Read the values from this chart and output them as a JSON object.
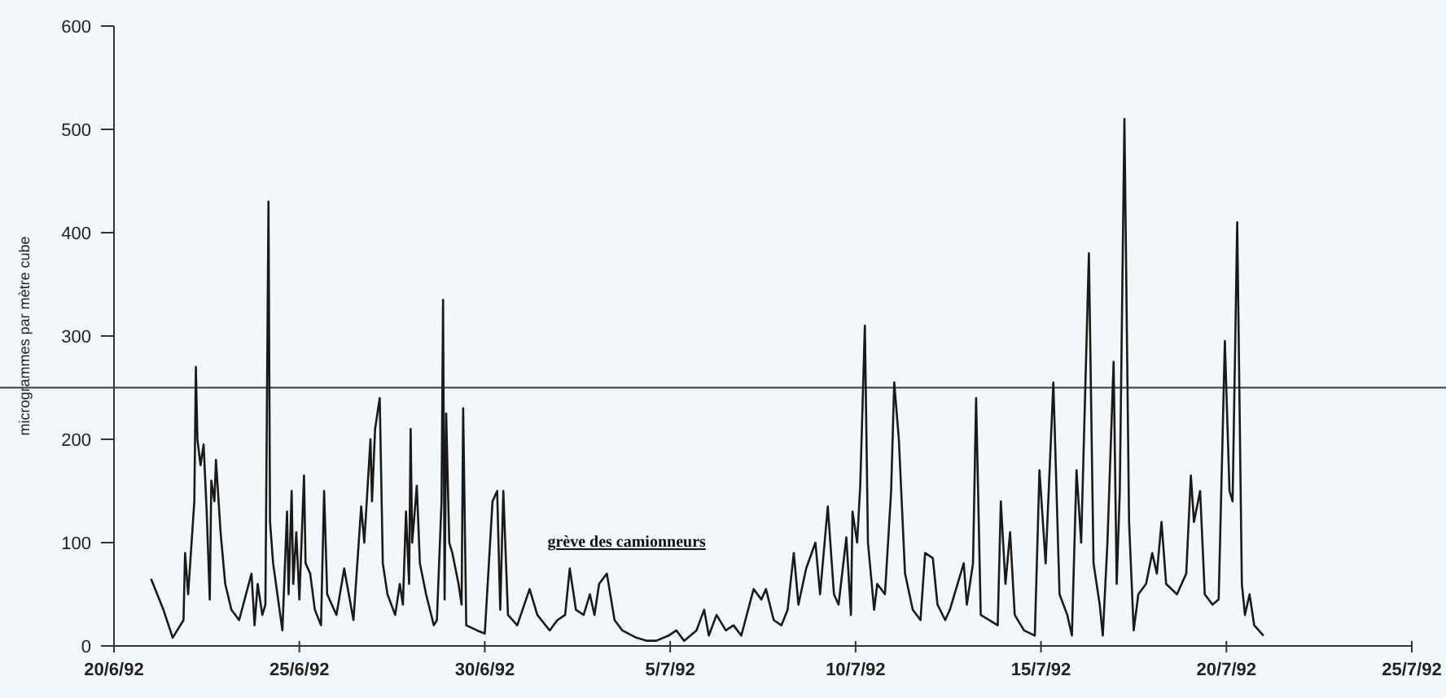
{
  "chart_data": {
    "type": "line",
    "ylabel": "microgrammes par mètre cube",
    "xlim": [
      "1992-06-20",
      "1992-07-25"
    ],
    "xticks": [
      {
        "value": "1992-06-20",
        "label": "20/6/92"
      },
      {
        "value": "1992-06-25",
        "label": "25/6/92"
      },
      {
        "value": "1992-06-30",
        "label": "30/6/92"
      },
      {
        "value": "1992-07-05",
        "label": "5/7/92"
      },
      {
        "value": "1992-07-10",
        "label": "10/7/92"
      },
      {
        "value": "1992-07-15",
        "label": "15/7/92"
      },
      {
        "value": "1992-07-20",
        "label": "20/7/92"
      },
      {
        "value": "1992-07-25",
        "label": "25/7/92"
      }
    ],
    "ylim": [
      0,
      600
    ],
    "yticks": [
      0,
      100,
      200,
      300,
      400,
      500,
      600
    ],
    "grid": false,
    "marker": "none",
    "line_style": "solid",
    "ref_lines": [
      {
        "axis": "y",
        "value": 250,
        "color": "#3a3a3a"
      }
    ],
    "annotations": [
      "grève des camionneurs"
    ],
    "series": [
      {
        "color": "#1a1a1a",
        "x": [
          "1992-06-21T00:00",
          "1992-06-21T08:00",
          "1992-06-21T14:00",
          "1992-06-21T21:00",
          "1992-06-21T22:00",
          "1992-06-22T00:00",
          "1992-06-22T04:00",
          "1992-06-22T05:00",
          "1992-06-22T06:00",
          "1992-06-22T08:00",
          "1992-06-22T10:00",
          "1992-06-22T12:00",
          "1992-06-22T14:00",
          "1992-06-22T15:00",
          "1992-06-22T17:00",
          "1992-06-22T18:00",
          "1992-06-22T21:00",
          "1992-06-23T00:00",
          "1992-06-23T04:00",
          "1992-06-23T09:00",
          "1992-06-23T17:00",
          "1992-06-23T19:00",
          "1992-06-23T21:00",
          "1992-06-24T00:00",
          "1992-06-24T02:00",
          "1992-06-24T04:00",
          "1992-06-24T05:00",
          "1992-06-24T07:00",
          "1992-06-24T13:00",
          "1992-06-24T16:00",
          "1992-06-24T17:00",
          "1992-06-24T19:00",
          "1992-06-24T20:00",
          "1992-06-24T22:00",
          "1992-06-25T00:00",
          "1992-06-25T03:00",
          "1992-06-25T04:00",
          "1992-06-25T07:00",
          "1992-06-25T10:00",
          "1992-06-25T14:00",
          "1992-06-25T16:00",
          "1992-06-25T18:00",
          "1992-06-26T00:00",
          "1992-06-26T05:00",
          "1992-06-26T11:00",
          "1992-06-26T16:00",
          "1992-06-26T18:00",
          "1992-06-26T22:00",
          "1992-06-26T23:00",
          "1992-06-27T01:00",
          "1992-06-27T03:00",
          "1992-06-27T04:00",
          "1992-06-27T06:00",
          "1992-06-27T09:00",
          "1992-06-27T14:00",
          "1992-06-27T17:00",
          "1992-06-27T19:00",
          "1992-06-27T21:00",
          "1992-06-27T23:00",
          "1992-06-28T00:00",
          "1992-06-28T01:00",
          "1992-06-28T04:00",
          "1992-06-28T06:00",
          "1992-06-28T10:00",
          "1992-06-28T15:00",
          "1992-06-28T17:00",
          "1992-06-28T20:00",
          "1992-06-28T21:00",
          "1992-06-28T22:00",
          "1992-06-28T23:00",
          "1992-06-29T01:00",
          "1992-06-29T03:00",
          "1992-06-29T07:00",
          "1992-06-29T09:00",
          "1992-06-29T10:00",
          "1992-06-29T12:00",
          "1992-06-29T19:00",
          "1992-06-30T00:00",
          "1992-06-30T05:00",
          "1992-06-30T08:00",
          "1992-06-30T10:00",
          "1992-06-30T12:00",
          "1992-06-30T15:00",
          "1992-06-30T21:00",
          "1992-07-01T05:00",
          "1992-07-01T10:00",
          "1992-07-01T18:00",
          "1992-07-01T23:00",
          "1992-07-02T04:00",
          "1992-07-02T07:00",
          "1992-07-02T11:00",
          "1992-07-02T16:00",
          "1992-07-02T20:00",
          "1992-07-02T23:00",
          "1992-07-03T02:00",
          "1992-07-03T07:00",
          "1992-07-03T12:00",
          "1992-07-03T17:00",
          "1992-07-04T02:00",
          "1992-07-04T09:00",
          "1992-07-04T15:00",
          "1992-07-04T23:00",
          "1992-07-05T04:00",
          "1992-07-05T09:00",
          "1992-07-05T17:00",
          "1992-07-05T22:00",
          "1992-07-06T01:00",
          "1992-07-06T06:00",
          "1992-07-06T12:00",
          "1992-07-06T17:00",
          "1992-07-06T22:00",
          "1992-07-07T06:00",
          "1992-07-07T11:00",
          "1992-07-07T14:00",
          "1992-07-07T19:00",
          "1992-07-08T00:00",
          "1992-07-08T04:00",
          "1992-07-08T08:00",
          "1992-07-08T11:00",
          "1992-07-08T16:00",
          "1992-07-08T22:00",
          "1992-07-09T01:00",
          "1992-07-09T06:00",
          "1992-07-09T10:00",
          "1992-07-09T13:00",
          "1992-07-09T18:00",
          "1992-07-09T21:00",
          "1992-07-09T22:00",
          "1992-07-10T01:00",
          "1992-07-10T03:00",
          "1992-07-10T06:00",
          "1992-07-10T08:00",
          "1992-07-10T12:00",
          "1992-07-10T14:00",
          "1992-07-10T19:00",
          "1992-07-10T23:00",
          "1992-07-11T01:00",
          "1992-07-11T04:00",
          "1992-07-11T08:00",
          "1992-07-11T13:00",
          "1992-07-11T18:00",
          "1992-07-11T21:00",
          "1992-07-12T02:00",
          "1992-07-12T05:00",
          "1992-07-12T10:00",
          "1992-07-12T13:00",
          "1992-07-12T22:00",
          "1992-07-13T00:00",
          "1992-07-13T04:00",
          "1992-07-13T06:00",
          "1992-07-13T09:00",
          "1992-07-13T20:00",
          "1992-07-13T22:00",
          "1992-07-14T01:00",
          "1992-07-14T04:00",
          "1992-07-14T07:00",
          "1992-07-14T13:00",
          "1992-07-14T20:00",
          "1992-07-14T23:00",
          "1992-07-15T03:00",
          "1992-07-15T08:00",
          "1992-07-15T12:00",
          "1992-07-15T17:00",
          "1992-07-15T20:00",
          "1992-07-15T23:00",
          "1992-07-16T02:00",
          "1992-07-16T07:00",
          "1992-07-16T10:00",
          "1992-07-16T14:00",
          "1992-07-16T16:00",
          "1992-07-16T19:00",
          "1992-07-16T23:00",
          "1992-07-17T01:00",
          "1992-07-17T03:00",
          "1992-07-17T06:00",
          "1992-07-17T09:00",
          "1992-07-17T12:00",
          "1992-07-17T15:00",
          "1992-07-17T20:00",
          "1992-07-18T00:00",
          "1992-07-18T03:00",
          "1992-07-18T06:00",
          "1992-07-18T09:00",
          "1992-07-18T16:00",
          "1992-07-18T22:00",
          "1992-07-19T01:00",
          "1992-07-19T03:00",
          "1992-07-19T07:00",
          "1992-07-19T10:00",
          "1992-07-19T15:00",
          "1992-07-19T19:00",
          "1992-07-19T23:00",
          "1992-07-20T02:00",
          "1992-07-20T04:00",
          "1992-07-20T07:00",
          "1992-07-20T10:00",
          "1992-07-20T12:00",
          "1992-07-20T15:00",
          "1992-07-20T18:00",
          "1992-07-21T00:00"
        ],
        "values": [
          65,
          35,
          8,
          25,
          90,
          50,
          140,
          270,
          200,
          175,
          195,
          130,
          45,
          160,
          140,
          180,
          110,
          60,
          35,
          25,
          70,
          20,
          60,
          30,
          40,
          430,
          120,
          80,
          15,
          130,
          50,
          150,
          60,
          110,
          45,
          165,
          80,
          70,
          35,
          20,
          150,
          50,
          30,
          75,
          25,
          135,
          100,
          200,
          140,
          210,
          230,
          240,
          80,
          50,
          30,
          60,
          40,
          130,
          60,
          210,
          100,
          155,
          80,
          50,
          20,
          25,
          140,
          335,
          45,
          225,
          100,
          90,
          60,
          40,
          230,
          20,
          15,
          12,
          140,
          150,
          35,
          150,
          30,
          20,
          55,
          30,
          15,
          25,
          30,
          75,
          35,
          30,
          50,
          30,
          60,
          70,
          25,
          15,
          8,
          5,
          5,
          10,
          15,
          5,
          15,
          35,
          10,
          30,
          15,
          20,
          10,
          55,
          45,
          55,
          25,
          20,
          35,
          90,
          40,
          75,
          100,
          50,
          135,
          50,
          40,
          105,
          30,
          130,
          100,
          155,
          310,
          100,
          35,
          60,
          50,
          150,
          255,
          200,
          70,
          35,
          25,
          90,
          85,
          40,
          25,
          35,
          80,
          40,
          80,
          240,
          30,
          20,
          140,
          60,
          110,
          30,
          15,
          10,
          170,
          80,
          255,
          50,
          30,
          10,
          170,
          100,
          380,
          80,
          40,
          10,
          100,
          275,
          60,
          150,
          510,
          120,
          15,
          50,
          60,
          90,
          70,
          120,
          60,
          50,
          70,
          165,
          120,
          150,
          50,
          40,
          45,
          295,
          150,
          140,
          410,
          60,
          30,
          50,
          20,
          10
        ]
      }
    ]
  }
}
